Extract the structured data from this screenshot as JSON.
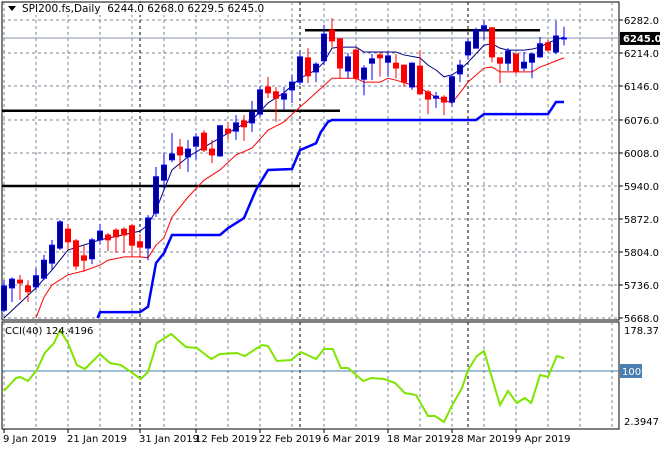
{
  "header": {
    "symbol": "SPI200.fs,Daily",
    "ohlc": "6244.0 6268.0 6229.5 6245.0"
  },
  "colors": {
    "bull": "#0000FF",
    "bull_fill": "#00008B",
    "bear": "#FF0000",
    "grid": "#7A8494",
    "current_price_line": "#8A96A6",
    "cci": "#7FE500",
    "cci_level": "#4A7FB0"
  },
  "chart_data": [
    {
      "type": "candlestick",
      "title": "SPI200.fs,Daily",
      "ylim": [
        5668,
        6282
      ],
      "y_ticks": [
        "6282.0",
        "6214.0",
        "6146.0",
        "6076.0",
        "6008.0",
        "5940.0",
        "5872.0",
        "5804.0",
        "5736.0",
        "5668.0"
      ],
      "current_price": "6245.0",
      "x_tick_labels": [
        {
          "index": 0,
          "label": "9 Jan 2019"
        },
        {
          "index": 8,
          "label": "21 Jan 2019"
        },
        {
          "index": 17,
          "label": "31 Jan 2019"
        },
        {
          "index": 24,
          "label": "12 Feb 2019"
        },
        {
          "index": 32,
          "label": "22 Feb 2019"
        },
        {
          "index": 40,
          "label": "6 Mar 2019"
        },
        {
          "index": 48,
          "label": "18 Mar 2019"
        },
        {
          "index": 56,
          "label": "28 Mar 2019"
        },
        {
          "index": 64,
          "label": "9 Apr 2019"
        }
      ],
      "ohlc": [
        [
          5684,
          5746,
          5680,
          5734
        ],
        [
          5730,
          5752,
          5701,
          5748
        ],
        [
          5746,
          5757,
          5705,
          5740
        ],
        [
          5734,
          5746,
          5701,
          5722
        ],
        [
          5732,
          5771,
          5726,
          5755
        ],
        [
          5750,
          5798,
          5746,
          5787
        ],
        [
          5781,
          5829,
          5767,
          5818
        ],
        [
          5812,
          5870,
          5808,
          5866
        ],
        [
          5851,
          5862,
          5808,
          5825
        ],
        [
          5827,
          5831,
          5767,
          5775
        ],
        [
          5796,
          5818,
          5763,
          5787
        ],
        [
          5790,
          5833,
          5779,
          5829
        ],
        [
          5829,
          5862,
          5820,
          5847
        ],
        [
          5839,
          5843,
          5806,
          5829
        ],
        [
          5849,
          5853,
          5802,
          5835
        ],
        [
          5851,
          5855,
          5802,
          5839
        ],
        [
          5858,
          5862,
          5794,
          5818
        ],
        [
          5825,
          5841,
          5792,
          5814
        ],
        [
          5812,
          5880,
          5787,
          5874
        ],
        [
          5884,
          5979,
          5876,
          5959
        ],
        [
          5952,
          6008,
          5932,
          5983
        ],
        [
          5994,
          6049,
          5989,
          6006
        ],
        [
          6020,
          6037,
          5975,
          6004
        ],
        [
          6000,
          6035,
          5969,
          6016
        ],
        [
          6022,
          6049,
          5994,
          6041
        ],
        [
          6049,
          6055,
          6010,
          6014
        ],
        [
          6016,
          6035,
          5987,
          6004
        ],
        [
          6002,
          6066,
          6000,
          6064
        ],
        [
          6057,
          6072,
          6035,
          6049
        ],
        [
          6053,
          6086,
          6035,
          6070
        ],
        [
          6074,
          6086,
          6033,
          6062
        ],
        [
          6070,
          6115,
          6051,
          6092
        ],
        [
          6088,
          6146,
          6082,
          6138
        ],
        [
          6144,
          6165,
          6121,
          6132
        ],
        [
          6134,
          6144,
          6072,
          6121
        ],
        [
          6119,
          6144,
          6097,
          6130
        ],
        [
          6138,
          6169,
          6111,
          6154
        ],
        [
          6154,
          6216,
          6148,
          6206
        ],
        [
          6204,
          6224,
          6152,
          6167
        ],
        [
          6175,
          6195,
          6154,
          6191
        ],
        [
          6198,
          6272,
          6189,
          6253
        ],
        [
          6261,
          6286,
          6226,
          6239
        ],
        [
          6243,
          6245,
          6162,
          6183
        ],
        [
          6177,
          6214,
          6162,
          6206
        ],
        [
          6220,
          6224,
          6158,
          6162
        ],
        [
          6160,
          6189,
          6127,
          6183
        ],
        [
          6193,
          6212,
          6158,
          6202
        ],
        [
          6210,
          6216,
          6165,
          6204
        ],
        [
          6195,
          6214,
          6165,
          6208
        ],
        [
          6193,
          6212,
          6162,
          6183
        ],
        [
          6189,
          6189,
          6144,
          6154
        ],
        [
          6144,
          6195,
          6138,
          6193
        ],
        [
          6187,
          6220,
          6127,
          6130
        ],
        [
          6134,
          6138,
          6088,
          6119
        ],
        [
          6121,
          6134,
          6101,
          6125
        ],
        [
          6123,
          6127,
          6086,
          6113
        ],
        [
          6113,
          6169,
          6103,
          6165
        ],
        [
          6171,
          6200,
          6154,
          6189
        ],
        [
          6210,
          6245,
          6200,
          6237
        ],
        [
          6224,
          6266,
          6224,
          6261
        ],
        [
          6261,
          6280,
          6241,
          6270
        ],
        [
          6266,
          6266,
          6195,
          6206
        ],
        [
          6204,
          6204,
          6152,
          6193
        ],
        [
          6193,
          6224,
          6177,
          6218
        ],
        [
          6212,
          6212,
          6171,
          6177
        ],
        [
          6183,
          6216,
          6177,
          6195
        ],
        [
          6195,
          6214,
          6162,
          6212
        ],
        [
          6206,
          6247,
          6204,
          6233
        ],
        [
          6235,
          6241,
          6216,
          6220
        ],
        [
          6216,
          6280,
          6212,
          6249
        ],
        [
          6244,
          6268,
          6229.5,
          6245
        ]
      ],
      "lines": [
        {
          "color": "#000080",
          "width": 1,
          "points": [
            [
              0,
              5668
            ],
            [
              4,
              5730
            ],
            [
              6,
              5767
            ],
            [
              8,
              5808
            ],
            [
              12,
              5829
            ],
            [
              17,
              5847
            ],
            [
              18,
              5860
            ],
            [
              19,
              5890
            ],
            [
              20,
              5932
            ],
            [
              21,
              5973
            ],
            [
              23,
              6000
            ],
            [
              25,
              6020
            ],
            [
              27,
              6039
            ],
            [
              29,
              6059
            ],
            [
              31,
              6076
            ],
            [
              33,
              6111
            ],
            [
              35,
              6132
            ],
            [
              37,
              6162
            ],
            [
              39,
              6179
            ],
            [
              40,
              6195
            ],
            [
              41,
              6224
            ],
            [
              42,
              6226
            ],
            [
              44,
              6226
            ],
            [
              45,
              6216
            ],
            [
              47,
              6216
            ],
            [
              49,
              6216
            ],
            [
              50,
              6210
            ],
            [
              52,
              6204
            ],
            [
              53,
              6189
            ],
            [
              54,
              6179
            ],
            [
              55,
              6165
            ],
            [
              56,
              6169
            ],
            [
              57,
              6179
            ],
            [
              58,
              6195
            ],
            [
              60,
              6230
            ],
            [
              61,
              6233
            ],
            [
              62,
              6224
            ],
            [
              63,
              6220
            ],
            [
              65,
              6220
            ],
            [
              66,
              6222
            ],
            [
              67,
              6226
            ],
            [
              68,
              6235
            ],
            [
              69,
              6241
            ],
            [
              70,
              6247
            ]
          ]
        },
        {
          "color": "#FF0000",
          "width": 1,
          "points": [
            [
              4,
              5668
            ],
            [
              5,
              5711
            ],
            [
              6,
              5736
            ],
            [
              8,
              5757
            ],
            [
              10,
              5765
            ],
            [
              12,
              5777
            ],
            [
              13,
              5787
            ],
            [
              15,
              5794
            ],
            [
              17,
              5794
            ],
            [
              18,
              5792
            ],
            [
              19,
              5818
            ],
            [
              20,
              5833
            ],
            [
              21,
              5876
            ],
            [
              23,
              5917
            ],
            [
              25,
              5952
            ],
            [
              27,
              5973
            ],
            [
              29,
              6004
            ],
            [
              31,
              6018
            ],
            [
              33,
              6055
            ],
            [
              35,
              6072
            ],
            [
              37,
              6103
            ],
            [
              38,
              6117
            ],
            [
              39,
              6132
            ],
            [
              41,
              6162
            ],
            [
              42,
              6162
            ],
            [
              44,
              6162
            ],
            [
              45,
              6154
            ],
            [
              47,
              6154
            ],
            [
              48,
              6162
            ],
            [
              49,
              6158
            ],
            [
              51,
              6148
            ],
            [
              52,
              6142
            ],
            [
              54,
              6123
            ],
            [
              56,
              6111
            ],
            [
              57,
              6132
            ],
            [
              58,
              6154
            ],
            [
              60,
              6183
            ],
            [
              61,
              6185
            ],
            [
              62,
              6175
            ],
            [
              66,
              6175
            ],
            [
              67,
              6185
            ],
            [
              68,
              6191
            ],
            [
              69,
              6198
            ],
            [
              70,
              6204
            ]
          ]
        },
        {
          "color": "#0000FF",
          "width": 2.5,
          "points": [
            [
              11.7,
              5668
            ],
            [
              12,
              5680
            ],
            [
              17,
              5680
            ],
            [
              18,
              5691
            ],
            [
              19,
              5781
            ],
            [
              20,
              5802
            ],
            [
              21,
              5839
            ],
            [
              27,
              5839
            ],
            [
              28,
              5853
            ],
            [
              30,
              5874
            ],
            [
              31.5,
              5932
            ],
            [
              33,
              5973
            ],
            [
              36,
              5975
            ],
            [
              37,
              6014
            ],
            [
              39,
              6028
            ],
            [
              39.6,
              6051
            ],
            [
              40.5,
              6072
            ],
            [
              41,
              6076
            ],
            [
              59,
              6076
            ],
            [
              60,
              6088
            ],
            [
              68,
              6088
            ],
            [
              69,
              6113
            ],
            [
              70,
              6113
            ]
          ]
        }
      ],
      "horizontal_lines": [
        {
          "value": 6261,
          "from_index": 38,
          "to_index": 67
        },
        {
          "value": 6095,
          "from_index": 0,
          "to_index": 42
        },
        {
          "value": 5940,
          "from_index": 0,
          "to_index": 37
        }
      ],
      "vertical_separator_indices": [
        17,
        37,
        58
      ]
    },
    {
      "type": "line",
      "title": "CCI(40) 124.4196",
      "ylim": [
        2.3947,
        178.3713
      ],
      "y_ticks": [
        "178.3713",
        "2.3947"
      ],
      "level": "100",
      "points": [
        [
          0,
          61.7
        ],
        [
          1.5,
          86.5
        ],
        [
          2,
          88.5
        ],
        [
          3,
          80.8
        ],
        [
          4.1,
          101.8
        ],
        [
          5.1,
          134.4
        ],
        [
          6.25,
          153.5
        ],
        [
          7,
          178
        ],
        [
          8,
          153.5
        ],
        [
          9.1,
          111.4
        ],
        [
          10.1,
          103.8
        ],
        [
          12,
          132.5
        ],
        [
          13.25,
          115.2
        ],
        [
          14.6,
          111.4
        ],
        [
          15.9,
          98
        ],
        [
          17.1,
          84.6
        ],
        [
          18,
          98
        ],
        [
          19.1,
          153.5
        ],
        [
          20.9,
          170.7
        ],
        [
          22.75,
          145.8
        ],
        [
          24.1,
          144
        ],
        [
          25.9,
          122.9
        ],
        [
          27,
          132.5
        ],
        [
          29.1,
          134.4
        ],
        [
          30.1,
          128.6
        ],
        [
          32.25,
          149.7
        ],
        [
          33,
          147.8
        ],
        [
          34.1,
          119.1
        ],
        [
          35.9,
          121
        ],
        [
          37.1,
          136.3
        ],
        [
          39,
          122.9
        ],
        [
          40,
          142
        ],
        [
          41.1,
          142
        ],
        [
          42.1,
          105.7
        ],
        [
          43,
          105.7
        ],
        [
          44.9,
          80.8
        ],
        [
          45.9,
          86.5
        ],
        [
          47.5,
          84.6
        ],
        [
          48.9,
          77
        ],
        [
          50.1,
          57.8
        ],
        [
          51.5,
          54
        ],
        [
          53,
          13.8
        ],
        [
          53.9,
          13.8
        ],
        [
          55,
          2.4
        ],
        [
          55.9,
          31
        ],
        [
          57.25,
          67.4
        ],
        [
          58,
          101.8
        ],
        [
          59.1,
          128.6
        ],
        [
          60,
          138.2
        ],
        [
          62,
          34.9
        ],
        [
          63,
          61.7
        ],
        [
          64.1,
          38.7
        ],
        [
          65.1,
          48.3
        ],
        [
          65.9,
          38.7
        ],
        [
          67,
          92.3
        ],
        [
          68,
          88.5
        ],
        [
          69.1,
          128.6
        ],
        [
          70,
          124.4
        ]
      ]
    }
  ]
}
